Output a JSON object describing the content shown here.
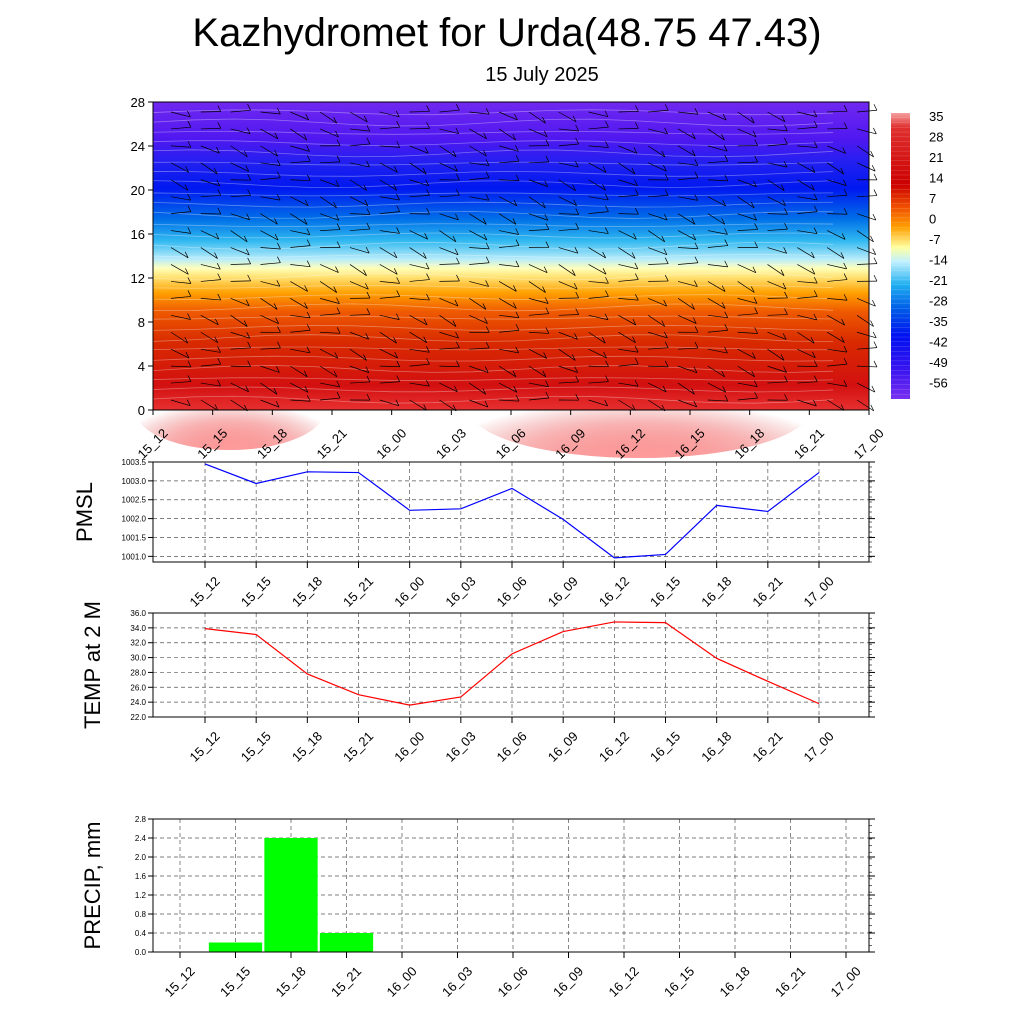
{
  "title": "Kazhydromet for Urda(48.75 47.43)",
  "subtitle": "15 July 2025",
  "time_labels": [
    "15_12",
    "15_15",
    "15_18",
    "15_21",
    "16_00",
    "16_03",
    "16_06",
    "16_09",
    "16_12",
    "16_15",
    "16_18",
    "16_21",
    "17_00"
  ],
  "chart_data": [
    {
      "type": "heatmap",
      "title": "",
      "ylabel": "",
      "y_ticks": [
        "0",
        "4",
        "8",
        "12",
        "16",
        "20",
        "24",
        "28"
      ],
      "ylim": [
        0,
        28
      ],
      "colorbar_labels": [
        "35",
        "28",
        "21",
        "14",
        "7",
        "0",
        "-7",
        "-14",
        "-21",
        "-28",
        "-35",
        "-42",
        "-49",
        "-56"
      ],
      "colorbar_range": [
        -60,
        38
      ],
      "wind_barbs": true
    },
    {
      "type": "line",
      "ylabel": "PMSL",
      "ylim": [
        1000.85,
        1003.5
      ],
      "y_ticks": [
        "1001.0",
        "1001.5",
        "1002.0",
        "1002.5",
        "1003.0",
        "1003.5"
      ],
      "color": "#0000ff",
      "values": [
        1003.45,
        1002.93,
        1003.24,
        1003.22,
        1002.22,
        1002.26,
        1002.8,
        1001.98,
        1000.96,
        1001.05,
        1002.35,
        1002.19,
        1003.22
      ],
      "grid": true
    },
    {
      "type": "line",
      "ylabel": "TEMP at 2 M",
      "ylim": [
        22.0,
        36.0
      ],
      "y_ticks": [
        "22.0",
        "24.0",
        "26.0",
        "28.0",
        "30.0",
        "32.0",
        "34.0",
        "36.0"
      ],
      "color": "#ff0000",
      "values": [
        33.9,
        33.1,
        27.8,
        25.0,
        23.6,
        24.7,
        30.5,
        33.5,
        34.8,
        34.7,
        29.9,
        26.8,
        23.8
      ],
      "grid": true
    },
    {
      "type": "bar",
      "ylabel": "PRECIP, mm",
      "ylim": [
        0.0,
        2.8
      ],
      "y_ticks": [
        "0.0",
        "0.4",
        "0.8",
        "1.2",
        "1.6",
        "2.0",
        "2.4",
        "2.8"
      ],
      "color": "#00ff00",
      "values": [
        0.2,
        2.4,
        0.4
      ],
      "bar_positions": [
        "15_15",
        "15_18",
        "15_21"
      ],
      "grid": true
    }
  ]
}
